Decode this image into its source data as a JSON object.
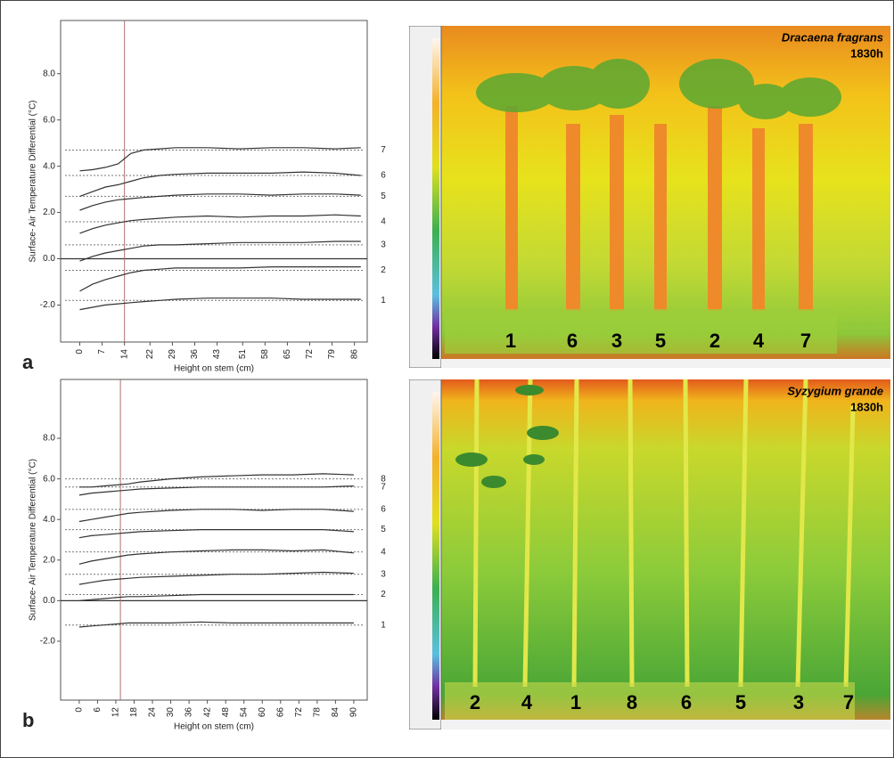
{
  "chart_data": [
    {
      "type": "line",
      "panel": "a",
      "y_label": "Surface- Air Temperature Differential (°C)",
      "x_label": "Height on stem (cm)",
      "xlim": [
        -6,
        90
      ],
      "xticks": [
        0,
        7,
        14,
        22,
        29,
        36,
        43,
        51,
        58,
        65,
        72,
        79,
        86
      ],
      "ylim": [
        -3.6,
        10.3
      ],
      "yticks": [
        {
          "value": -2,
          "label": "-2.0"
        },
        {
          "value": 0,
          "label": "0.0"
        },
        {
          "value": 2,
          "label": "2.0"
        },
        {
          "value": 4,
          "label": "4.0"
        },
        {
          "value": 6,
          "label": "6.0"
        },
        {
          "value": 8,
          "label": "8.0"
        }
      ],
      "vline": 14,
      "x": [
        0,
        4,
        8,
        12,
        16,
        20,
        25,
        30,
        40,
        50,
        60,
        70,
        80,
        88
      ],
      "series": [
        {
          "name": "1",
          "color": "#333333",
          "reference": -1.8,
          "values": [
            -2.2,
            -2.1,
            -2.0,
            -1.95,
            -1.9,
            -1.85,
            -1.8,
            -1.75,
            -1.7,
            -1.7,
            -1.7,
            -1.75,
            -1.75,
            -1.75
          ]
        },
        {
          "name": "2",
          "color": "#333333",
          "reference": -0.5,
          "values": [
            -1.4,
            -1.1,
            -0.9,
            -0.75,
            -0.6,
            -0.5,
            -0.45,
            -0.4,
            -0.4,
            -0.4,
            -0.35,
            -0.35,
            -0.35,
            -0.35
          ]
        },
        {
          "name": "3",
          "color": "#333333",
          "reference": 0.6,
          "values": [
            -0.1,
            0.1,
            0.25,
            0.35,
            0.45,
            0.55,
            0.6,
            0.6,
            0.65,
            0.7,
            0.7,
            0.7,
            0.75,
            0.75
          ]
        },
        {
          "name": "4",
          "color": "#333333",
          "reference": 1.6,
          "values": [
            1.1,
            1.3,
            1.45,
            1.55,
            1.65,
            1.7,
            1.75,
            1.8,
            1.85,
            1.8,
            1.85,
            1.85,
            1.9,
            1.85
          ]
        },
        {
          "name": "5",
          "color": "#333333",
          "reference": 2.7,
          "values": [
            2.1,
            2.3,
            2.45,
            2.55,
            2.6,
            2.65,
            2.7,
            2.75,
            2.8,
            2.8,
            2.75,
            2.8,
            2.8,
            2.75
          ]
        },
        {
          "name": "6",
          "color": "#333333",
          "reference": 3.6,
          "values": [
            2.7,
            2.9,
            3.1,
            3.2,
            3.35,
            3.5,
            3.6,
            3.65,
            3.7,
            3.7,
            3.7,
            3.75,
            3.7,
            3.6
          ]
        },
        {
          "name": "7",
          "color": "#333333",
          "reference": 4.7,
          "values": [
            3.8,
            3.85,
            3.95,
            4.1,
            4.55,
            4.7,
            4.75,
            4.8,
            4.8,
            4.75,
            4.8,
            4.8,
            4.75,
            4.8
          ]
        }
      ]
    },
    {
      "type": "line",
      "panel": "b",
      "y_label": "Surface- Air Temperature Differential (°C)",
      "x_label": "Height on stem (cm)",
      "xlim": [
        -6.1,
        94.4
      ],
      "xticks": [
        0,
        6,
        12,
        18,
        24,
        30,
        36,
        42,
        48,
        54,
        60,
        66,
        72,
        78,
        84,
        90
      ],
      "ylim": [
        -4.9,
        10.9
      ],
      "yticks": [
        {
          "value": -2,
          "label": "-2.0"
        },
        {
          "value": 0,
          "label": "0.0"
        },
        {
          "value": 2,
          "label": "2.0"
        },
        {
          "value": 4,
          "label": "4.0"
        },
        {
          "value": 6,
          "label": "6.0"
        },
        {
          "value": 8,
          "label": "8.0"
        }
      ],
      "vline": 13.5,
      "x": [
        0,
        4,
        8,
        12,
        16,
        20,
        30,
        40,
        50,
        60,
        70,
        80,
        90
      ],
      "series": [
        {
          "name": "1",
          "color": "#333333",
          "reference": -1.2,
          "values": [
            -1.3,
            -1.25,
            -1.2,
            -1.15,
            -1.1,
            -1.1,
            -1.1,
            -1.05,
            -1.1,
            -1.1,
            -1.1,
            -1.1,
            -1.1
          ]
        },
        {
          "name": "2",
          "color": "#333333",
          "reference": 0.3,
          "values": [
            0.0,
            0.05,
            0.1,
            0.15,
            0.2,
            0.2,
            0.25,
            0.3,
            0.3,
            0.3,
            0.3,
            0.3,
            0.3
          ]
        },
        {
          "name": "3",
          "color": "#333333",
          "reference": 1.3,
          "values": [
            0.8,
            0.9,
            1.0,
            1.05,
            1.1,
            1.15,
            1.2,
            1.25,
            1.3,
            1.3,
            1.35,
            1.4,
            1.35
          ]
        },
        {
          "name": "4",
          "color": "#333333",
          "reference": 2.4,
          "values": [
            1.8,
            1.95,
            2.05,
            2.15,
            2.25,
            2.3,
            2.4,
            2.45,
            2.5,
            2.5,
            2.45,
            2.5,
            2.35
          ]
        },
        {
          "name": "5",
          "color": "#333333",
          "reference": 3.5,
          "values": [
            3.1,
            3.2,
            3.25,
            3.3,
            3.35,
            3.4,
            3.45,
            3.5,
            3.5,
            3.5,
            3.5,
            3.5,
            3.4
          ]
        },
        {
          "name": "6",
          "color": "#333333",
          "reference": 4.5,
          "values": [
            3.9,
            4.0,
            4.1,
            4.2,
            4.3,
            4.35,
            4.45,
            4.5,
            4.5,
            4.45,
            4.5,
            4.5,
            4.4
          ]
        },
        {
          "name": "7",
          "color": "#333333",
          "reference": 5.6,
          "values": [
            5.2,
            5.3,
            5.35,
            5.4,
            5.45,
            5.5,
            5.55,
            5.6,
            5.6,
            5.6,
            5.6,
            5.6,
            5.65
          ]
        },
        {
          "name": "8",
          "color": "#333333",
          "reference": 6.0,
          "values": [
            5.6,
            5.6,
            5.65,
            5.7,
            5.75,
            5.85,
            6.0,
            6.1,
            6.15,
            6.2,
            6.2,
            6.25,
            6.2
          ]
        }
      ]
    }
  ],
  "images": [
    {
      "species": "Dracaena fragrans",
      "time": "1830h",
      "labels": [
        "1",
        "6",
        "3",
        "5",
        "2",
        "4",
        "7"
      ]
    },
    {
      "species": "Syzygium grande",
      "time": "1830h",
      "labels": [
        "2",
        "4",
        "1",
        "8",
        "6",
        "5",
        "3",
        "7"
      ]
    }
  ]
}
